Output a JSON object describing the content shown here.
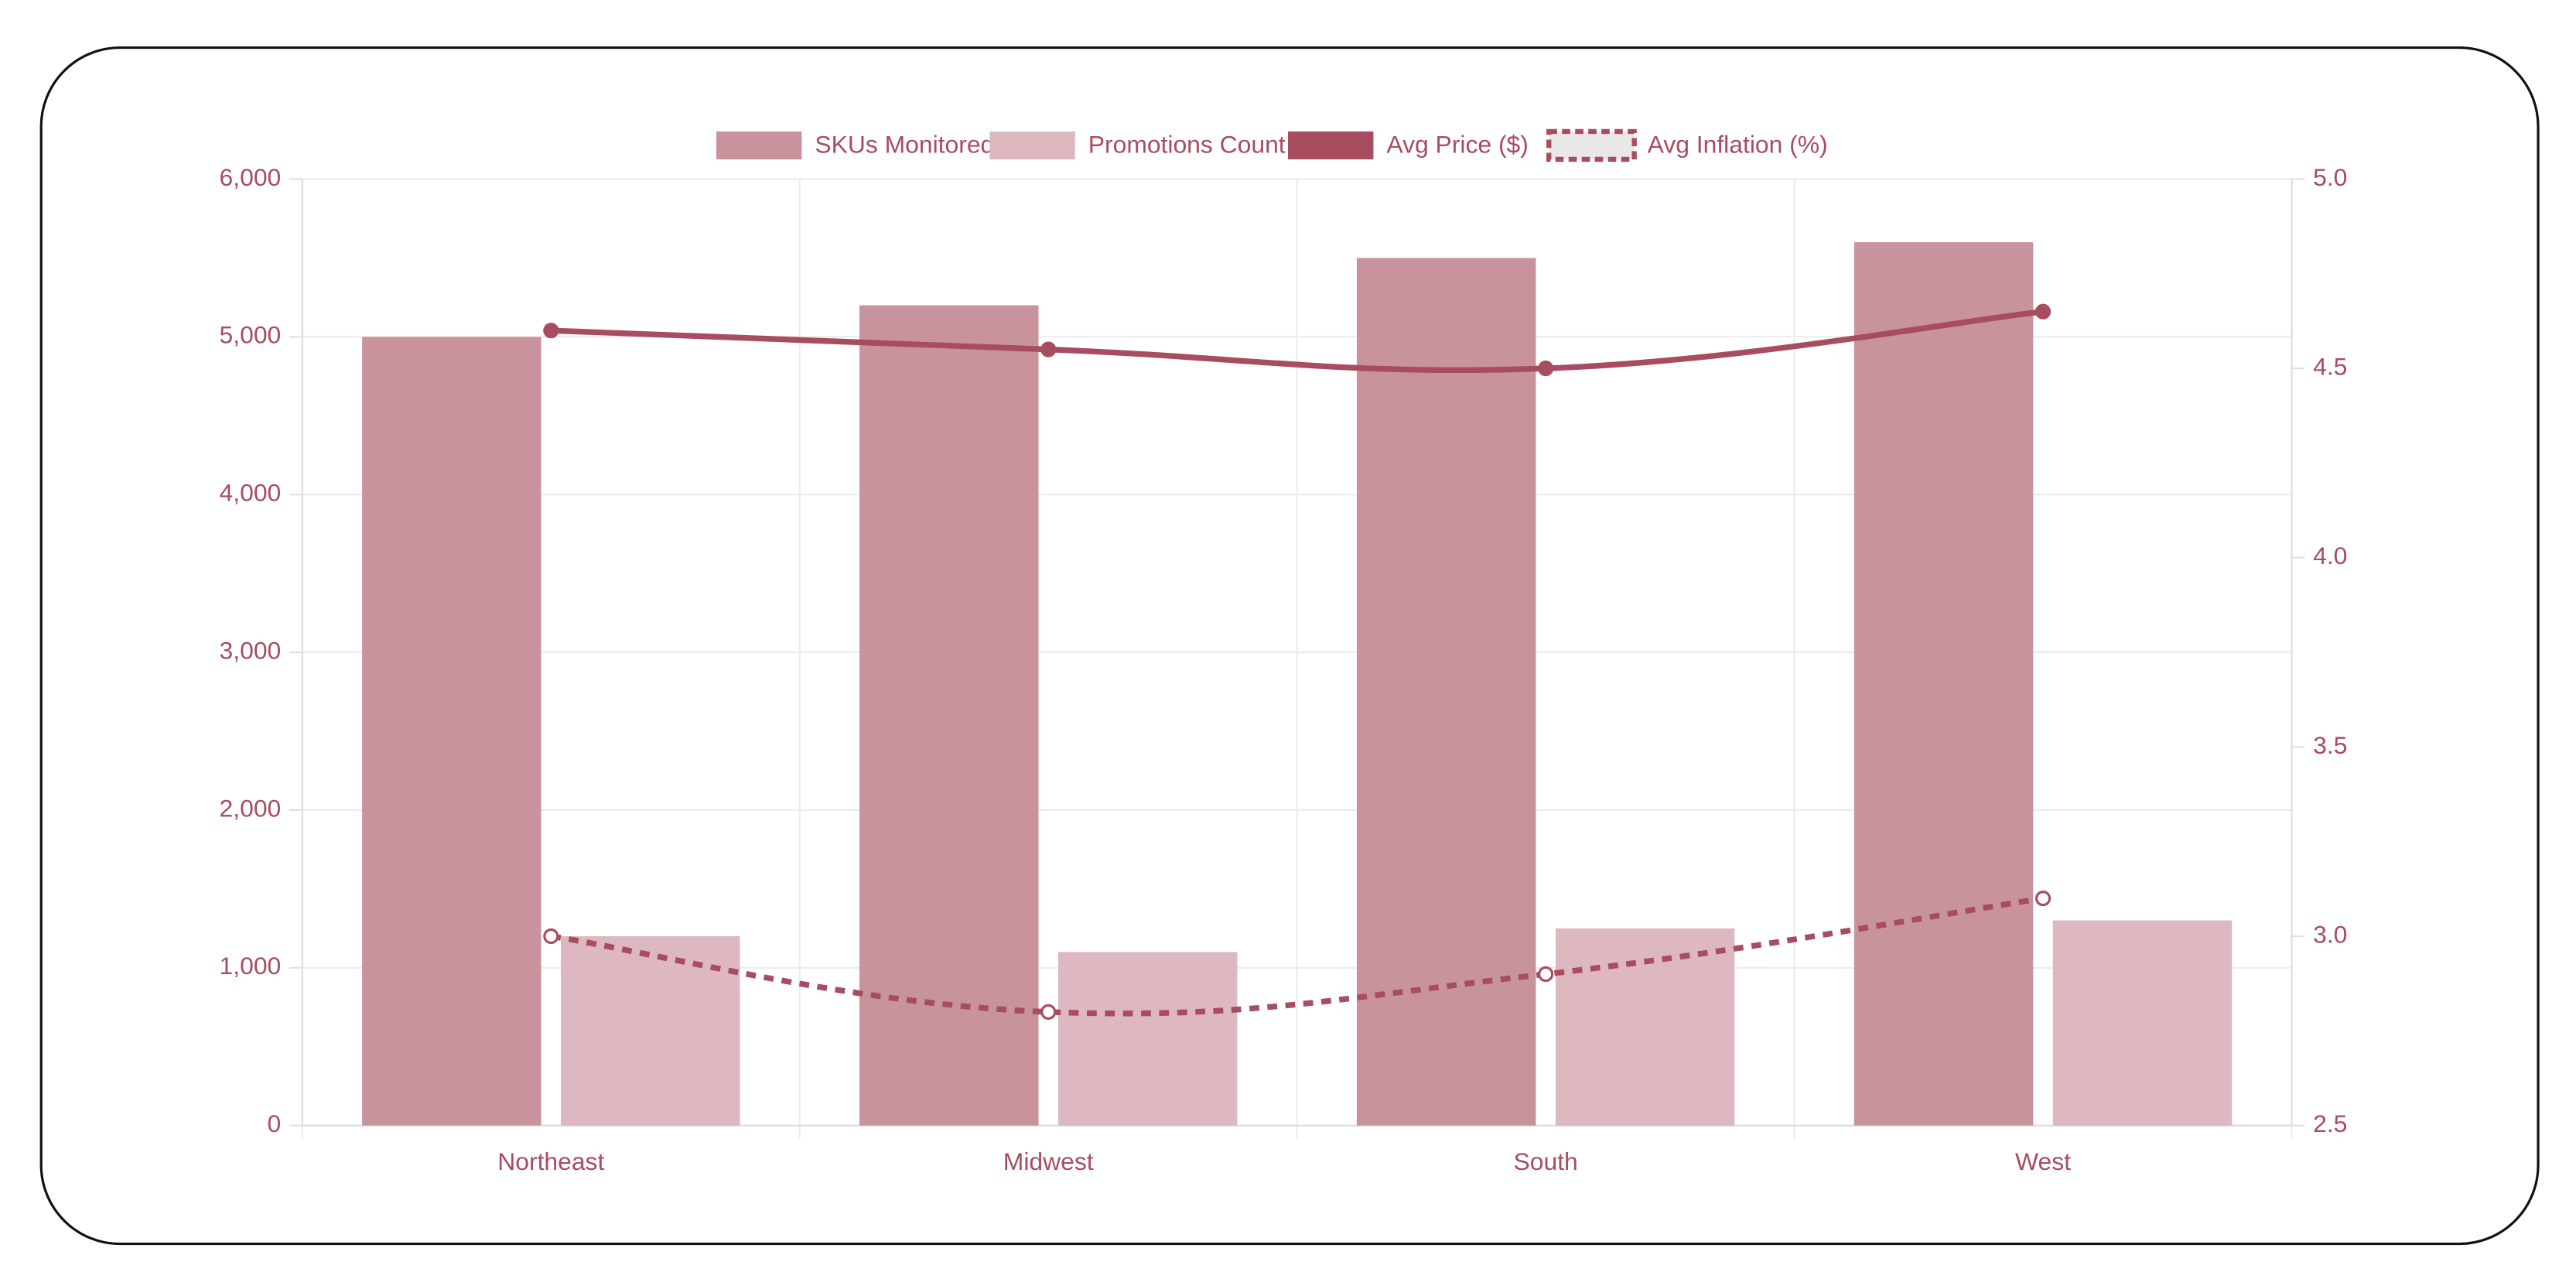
{
  "chart_data": {
    "type": "bar",
    "categories": [
      "Northeast",
      "Midwest",
      "South",
      "West"
    ],
    "series": [
      {
        "name": "SKUs Monitored",
        "type": "bar",
        "color": "#c9939e",
        "values": [
          5000,
          5200,
          5500,
          5600
        ]
      },
      {
        "name": "Promotions Count",
        "type": "bar",
        "color": "#ddb8c0",
        "values": [
          1200,
          1100,
          1250,
          1300
        ]
      },
      {
        "name": "Avg Price ($)",
        "type": "line",
        "axis": "y2",
        "color": "#a84d60",
        "values": [
          4.6,
          4.55,
          4.5,
          4.65
        ]
      },
      {
        "name": "Avg Inflation (%)",
        "type": "line",
        "axis": "y2",
        "dashed": true,
        "color": "#a84d60",
        "values": [
          3.0,
          2.8,
          2.9,
          3.1
        ]
      }
    ],
    "ylim": [
      0,
      6000
    ],
    "yticks": [
      0,
      {
        "value": 1000,
        "label": "1,000"
      },
      {
        "value": 2000,
        "label": "2,000"
      },
      {
        "value": 3000,
        "label": "3,000"
      },
      {
        "value": 4000,
        "label": "4,000"
      },
      {
        "value": 5000,
        "label": "5,000"
      },
      {
        "value": 6000,
        "label": "6,000"
      }
    ],
    "y2lim": [
      2.5,
      5.0
    ],
    "y2ticks": [
      2.5,
      {
        "value": 3.0,
        "label": "3.0"
      },
      3.5,
      {
        "value": 4.0,
        "label": "4.0"
      },
      4.5,
      {
        "value": 5.0,
        "label": "5.0"
      }
    ],
    "grid": true,
    "legend": "top"
  }
}
